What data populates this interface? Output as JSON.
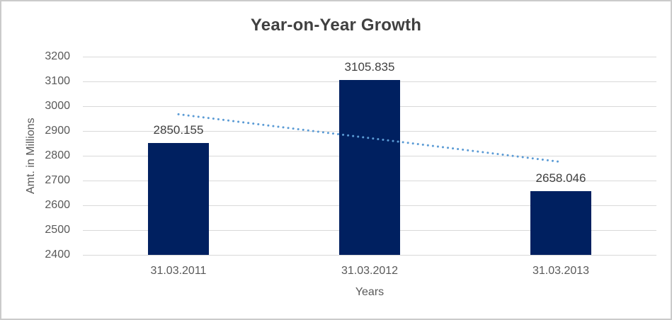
{
  "chart_data": {
    "type": "bar",
    "title": "Year-on-Year Growth",
    "xlabel": "Years",
    "ylabel": "Amt. in Millions",
    "categories": [
      "31.03.2011",
      "31.03.2012",
      "31.03.2013"
    ],
    "values": [
      2850.155,
      3105.835,
      2658.046
    ],
    "data_labels": [
      "2850.155",
      "3105.835",
      "2658.046"
    ],
    "ylim": [
      2400,
      3200
    ],
    "y_tick_step": 100,
    "y_tick_labels": [
      "2400",
      "2500",
      "2600",
      "2700",
      "2800",
      "2900",
      "3000",
      "3100",
      "3200"
    ],
    "gridlines": true,
    "legend": "none",
    "bar_color": "#002060",
    "gridline_color": "#D9D9D9",
    "trendline": {
      "type": "linear",
      "style": "dotted",
      "color": "#5B9BD5"
    },
    "text_colors": {
      "title": "#404040",
      "axis_labels": "#595959",
      "data_labels": "#404040"
    }
  }
}
